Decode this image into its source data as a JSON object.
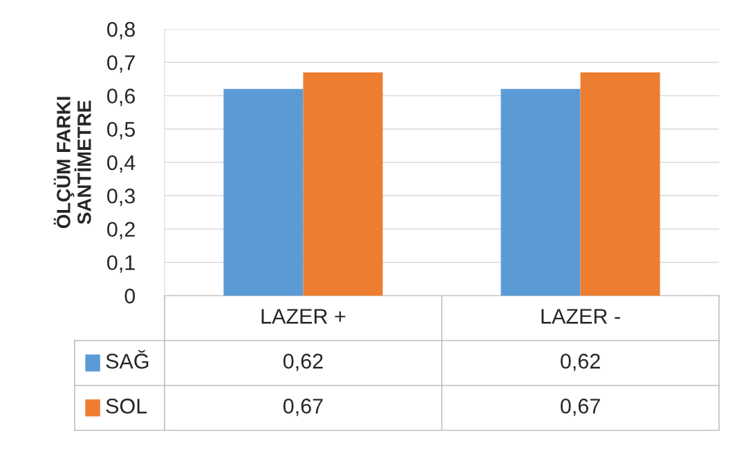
{
  "chart_data": {
    "type": "bar",
    "ylabel": "ÖLÇÜM FARKI\nSANTİMETRE",
    "categories": [
      "LAZER +",
      "LAZER -"
    ],
    "series": [
      {
        "name": "SAĞ",
        "color": "#5b9bd5",
        "values": [
          0.62,
          0.62
        ],
        "value_labels": [
          "0,62",
          "0,62"
        ]
      },
      {
        "name": "SOL",
        "color": "#ed7d31",
        "values": [
          0.67,
          0.67
        ],
        "value_labels": [
          "0,67",
          "0,67"
        ]
      }
    ],
    "ylim": [
      0,
      0.8
    ],
    "yticks": [
      0,
      {
        "value": 0.1,
        "label": "0,1"
      },
      {
        "value": 0.2,
        "label": "0,2"
      },
      {
        "value": 0.3,
        "label": "0,3"
      },
      {
        "value": 0.4,
        "label": "0,4"
      },
      {
        "value": 0.5,
        "label": "0,5"
      },
      {
        "value": 0.6,
        "label": "0,6"
      },
      {
        "value": 0.7,
        "label": "0,7"
      },
      {
        "value": 0.8,
        "label": "0,8"
      }
    ],
    "grid": "y",
    "legend": "bottom"
  }
}
